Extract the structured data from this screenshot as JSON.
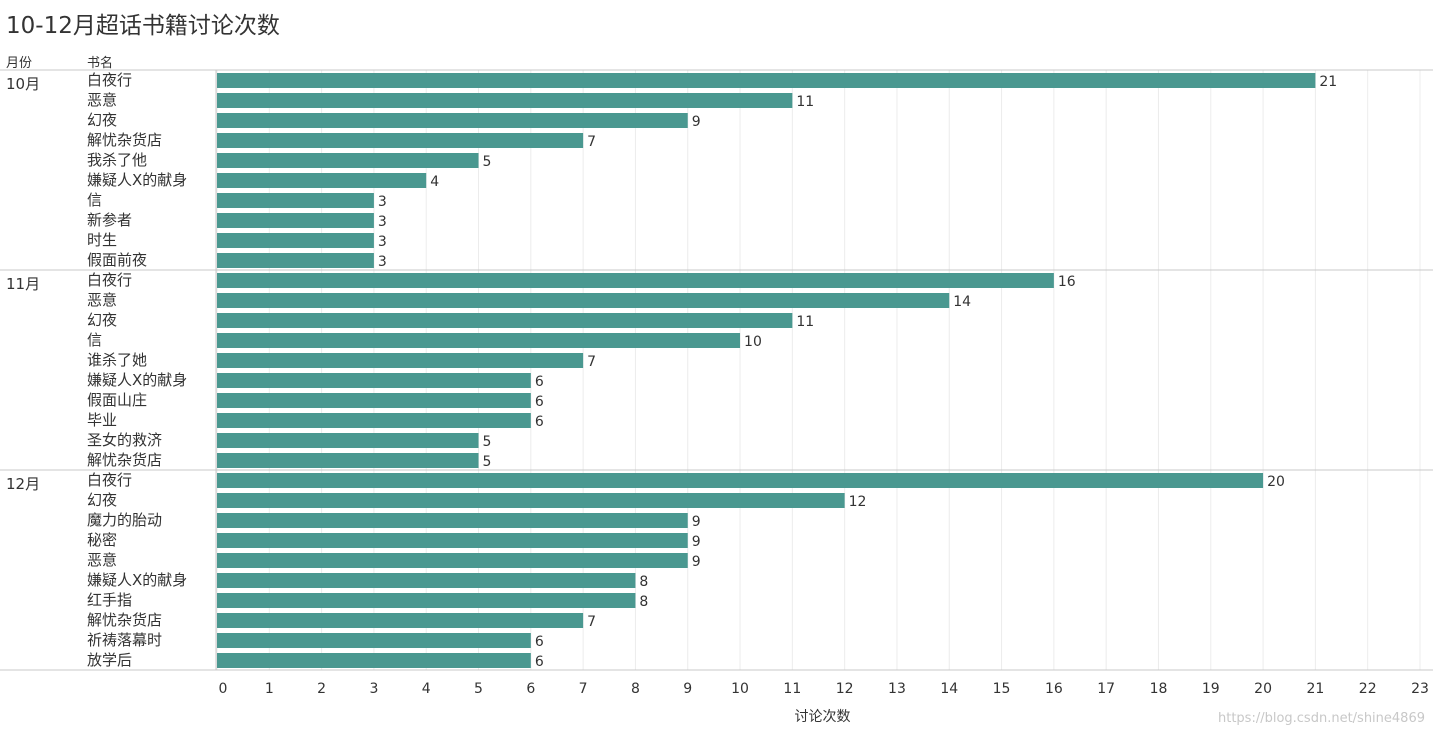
{
  "title": "10-12月超话书籍讨论次数",
  "headers": {
    "month": "月份",
    "book": "书名"
  },
  "watermark": "https://blog.csdn.net/shine4869",
  "colors": {
    "bar": "#4a9890",
    "grid": "#ececec",
    "divider": "#c8c8c8",
    "text": "#333333"
  },
  "chart_data": {
    "type": "bar",
    "orientation": "horizontal",
    "xlabel": "讨论次数",
    "xlim": [
      0,
      23
    ],
    "xticks": [
      0,
      1,
      2,
      3,
      4,
      5,
      6,
      7,
      8,
      9,
      10,
      11,
      12,
      13,
      14,
      15,
      16,
      17,
      18,
      19,
      20,
      21,
      22,
      23
    ],
    "grid": true,
    "data_labels": true,
    "groups": [
      {
        "month": "10月",
        "books": [
          "白夜行",
          "恶意",
          "幻夜",
          "解忧杂货店",
          "我杀了他",
          "嫌疑人X的献身",
          "信",
          "新参者",
          "时生",
          "假面前夜"
        ],
        "values": [
          21,
          11,
          9,
          7,
          5,
          4,
          3,
          3,
          3,
          3
        ]
      },
      {
        "month": "11月",
        "books": [
          "白夜行",
          "恶意",
          "幻夜",
          "信",
          "谁杀了她",
          "嫌疑人X的献身",
          "假面山庄",
          "毕业",
          "圣女的救济",
          "解忧杂货店"
        ],
        "values": [
          16,
          14,
          11,
          10,
          7,
          6,
          6,
          6,
          5,
          5
        ]
      },
      {
        "month": "12月",
        "books": [
          "白夜行",
          "幻夜",
          "魔力的胎动",
          "秘密",
          "恶意",
          "嫌疑人X的献身",
          "红手指",
          "解忧杂货店",
          "祈祷落幕时",
          "放学后"
        ],
        "values": [
          20,
          12,
          9,
          9,
          9,
          8,
          8,
          7,
          6,
          6
        ]
      }
    ]
  }
}
